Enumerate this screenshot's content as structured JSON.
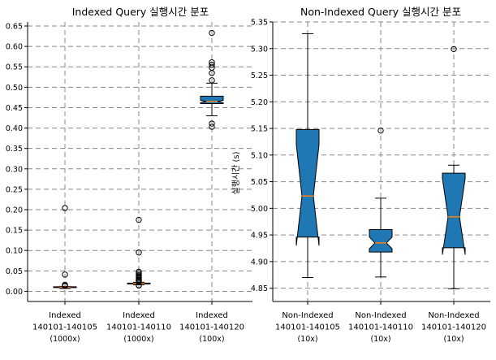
{
  "chart_data": [
    {
      "type": "box",
      "title": "Indexed Query 실행시간 분포",
      "xlabel": "",
      "ylabel": "",
      "ylim": [
        -0.025,
        0.66
      ],
      "yticks": [
        "0.00",
        "0.05",
        "0.10",
        "0.15",
        "0.20",
        "0.25",
        "0.30",
        "0.35",
        "0.40",
        "0.45",
        "0.50",
        "0.55",
        "0.60",
        "0.65"
      ],
      "grid": true,
      "box_color": "#1f77b4",
      "median_color": "#ff7f0e",
      "categories": [
        [
          "Indexed",
          "140101-140105",
          "(1000x)"
        ],
        [
          "Indexed",
          "140101-140110",
          "(1000x)"
        ],
        [
          "Indexed",
          "140101-140120",
          "(100x)"
        ]
      ],
      "boxes": [
        {
          "whislo": 0.007,
          "q1": 0.009,
          "med": 0.01,
          "q3": 0.011,
          "whishi": 0.012,
          "notch_low": 0.0095,
          "notch_high": 0.0105,
          "fliers": [
            0.204,
            0.041,
            0.016,
            0.014,
            0.013
          ]
        },
        {
          "whislo": 0.016,
          "q1": 0.018,
          "med": 0.019,
          "q3": 0.02,
          "whishi": 0.022,
          "notch_low": 0.0185,
          "notch_high": 0.0195,
          "fliers": [
            0.175,
            0.095,
            0.048,
            0.044,
            0.04,
            0.037,
            0.034,
            0.031,
            0.028,
            0.026,
            0.024,
            0.015,
            0.014
          ]
        },
        {
          "whislo": 0.43,
          "q1": 0.46,
          "med": 0.465,
          "q3": 0.478,
          "whishi": 0.51,
          "notch_low": 0.462,
          "notch_high": 0.468,
          "fliers": [
            0.633,
            0.561,
            0.555,
            0.548,
            0.535,
            0.517,
            0.411,
            0.403
          ]
        }
      ]
    },
    {
      "type": "box",
      "title": "Non-Indexed Query 실행시간 분포",
      "xlabel": "",
      "ylabel": "실행시간 (s)",
      "ylim": [
        4.825,
        5.35
      ],
      "yticks": [
        "4.85",
        "4.90",
        "4.95",
        "5.00",
        "5.05",
        "5.10",
        "5.15",
        "5.20",
        "5.25",
        "5.30",
        "5.35"
      ],
      "grid": true,
      "box_color": "#1f77b4",
      "median_color": "#ff7f0e",
      "categories": [
        [
          "Non-Indexed",
          "140101-140105",
          "(10x)"
        ],
        [
          "Non-Indexed",
          "140101-140110",
          "(10x)"
        ],
        [
          "Non-Indexed",
          "140101-140120",
          "(10x)"
        ]
      ],
      "boxes": [
        {
          "whislo": 4.87,
          "q1": 4.946,
          "med": 5.023,
          "q3": 5.148,
          "whishi": 5.328,
          "notch_low": 4.93,
          "notch_high": 5.12,
          "fliers": []
        },
        {
          "whislo": 4.871,
          "q1": 4.918,
          "med": 4.935,
          "q3": 4.96,
          "whishi": 5.019,
          "notch_low": 4.924,
          "notch_high": 4.946,
          "fliers": [
            5.146
          ]
        },
        {
          "whislo": 4.849,
          "q1": 4.926,
          "med": 4.984,
          "q3": 5.066,
          "whishi": 5.081,
          "notch_low": 4.913,
          "notch_high": 5.056,
          "fliers": [
            5.299
          ]
        }
      ]
    }
  ]
}
